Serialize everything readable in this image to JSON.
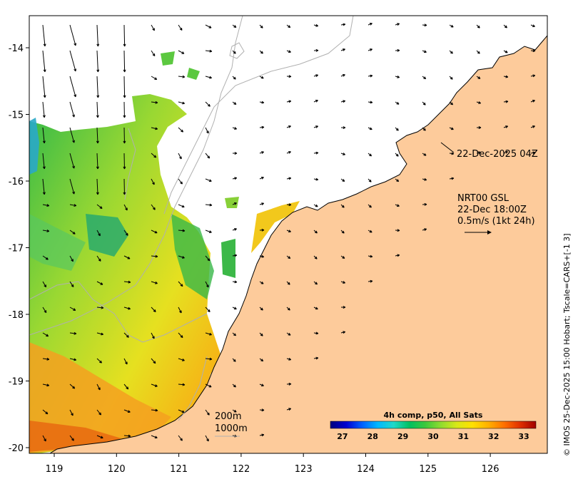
{
  "map": {
    "x_ticks": [
      "119",
      "120",
      "121",
      "122",
      "123",
      "124",
      "125",
      "126"
    ],
    "y_ticks": [
      "-14",
      "-15",
      "-16",
      "-17",
      "-18",
      "-19",
      "-20"
    ],
    "colors": {
      "land": "#fdcb9b",
      "sea": "#ffffff",
      "isobath": "#b0b0b0",
      "coast": "#000000"
    }
  },
  "annotations": {
    "current_time": "22-Dec-2025 04Z",
    "source": "NRT00 GSL",
    "vector_time": "22-Dec 18:00Z",
    "scale": "0.5m/s (1kt 24h)",
    "isobath_200": "200m",
    "isobath_1000": "1000m"
  },
  "colorbar": {
    "title": "4h comp, p50, All Sats",
    "ticks": [
      "27",
      "28",
      "29",
      "30",
      "31",
      "32",
      "33"
    ],
    "range": [
      26.6,
      33.4
    ],
    "colors": [
      "#00007f",
      "#0000d0",
      "#0060ff",
      "#00b8ff",
      "#20d8c8",
      "#00c060",
      "#3cc83c",
      "#90dc30",
      "#d8e818",
      "#ffe000",
      "#ffb000",
      "#ff7000",
      "#e03000",
      "#a00000"
    ]
  },
  "credit": "© IMOS 25-Dec-2025 15:00 Hobart; Tscale=CARS+[-1 3]"
}
